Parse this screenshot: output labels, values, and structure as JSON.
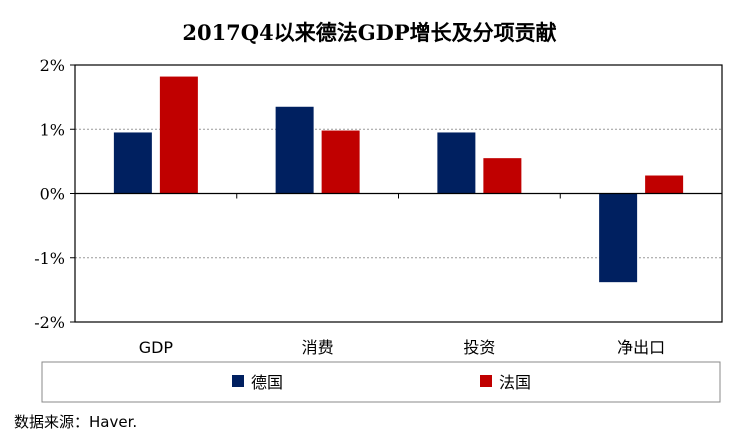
{
  "chart_data": {
    "type": "bar",
    "title": "2017Q4以来德法GDP增长及分项贡献",
    "categories": [
      "GDP",
      "消费",
      "投资",
      "净出口"
    ],
    "series": [
      {
        "name": "德国",
        "values": [
          0.95,
          1.35,
          0.95,
          -1.38
        ],
        "color": "#002060"
      },
      {
        "name": "法国",
        "values": [
          1.82,
          0.98,
          0.55,
          0.28
        ],
        "color": "#C00000"
      }
    ],
    "ylim": [
      -2,
      2
    ],
    "yticks": [
      2,
      1,
      0,
      -1,
      -2
    ],
    "ytick_labels": [
      "2%",
      "1%",
      "0%",
      "-1%",
      "-2%"
    ],
    "grid": true,
    "legend_position": "bottom"
  },
  "source_text": "数据来源：Haver."
}
